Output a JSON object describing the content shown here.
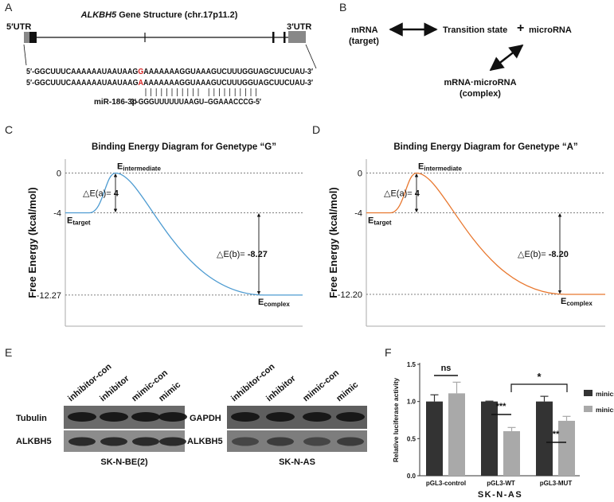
{
  "panels": {
    "A": {
      "letter": "A",
      "title_gene": "ALKBH5",
      "title_rest": " Gene Structure (chr.17p11.2)",
      "utr5": "5′UTR",
      "utr3": "3′UTR",
      "seq1": [
        "5′-GGCUUUCAAAAAAUAAUAAG",
        "G",
        "AAAAAAAGGUAAAGUCUUUGGUAGCUUCUAU-3′"
      ],
      "seq2": [
        "5′-GGCUUUCAAAAAAUAAUAAG",
        "A",
        "AAAAAAAGGUAAAGUCUUUGGUAGCUUCUAU-3′"
      ],
      "mirna_name": "miR-186-3p",
      "mirna_seq": "3′-GGGUUUUUUAAGU–GGAAACCCG-5′"
    },
    "B": {
      "letter": "B",
      "mrna": "mRNA",
      "mrna_note": "(target)",
      "transition": "Transition state",
      "plus": "+",
      "microrna": "microRNA",
      "complex": "mRNA·microRNA",
      "complex_note": "(complex)"
    },
    "C": {
      "letter": "C"
    },
    "D": {
      "letter": "D"
    },
    "E": {
      "letter": "E",
      "lanes": [
        "inhibitor-con",
        "inhibitor",
        "mimic-con",
        "mimic"
      ],
      "left_rows": [
        "Tubulin",
        "ALKBH5"
      ],
      "left_cell": "SK-N-BE(2)",
      "right_rows": [
        "GAPDH",
        "ALKBH5"
      ],
      "right_cell": "SK-N-AS"
    },
    "F": {
      "letter": "F"
    }
  },
  "chart_data": [
    {
      "type": "energy",
      "title": "Binding Energy Diagram for Genetype “G”",
      "y_label": "Free Energy (kcal/mol)",
      "color": "#4d9bd1",
      "ylim": [
        -15.4,
        1.4
      ],
      "yticks": [
        0,
        -4,
        -12.27
      ],
      "levels": [
        -4,
        0,
        -12.27
      ],
      "level_symbol": "E",
      "level_names": [
        "target",
        "intermediate",
        "complex"
      ],
      "delta_labels": [
        "△E(a)= ",
        "△E(b)= "
      ],
      "deltas": [
        4,
        -8.27
      ]
    },
    {
      "type": "energy",
      "title": "Binding Energy Diagram for Genetype “A”",
      "y_label": "Free Energy (kcal/mol)",
      "color": "#e8772e",
      "ylim": [
        -15.4,
        1.4
      ],
      "yticks": [
        0,
        -4,
        {
          "value": -12.2,
          "label": "-12.20"
        }
      ],
      "levels": [
        -4,
        0,
        -12.2
      ],
      "level_symbol": "E",
      "level_names": [
        "target",
        "intermediate",
        "complex"
      ],
      "delta_labels": [
        "△E(a)= ",
        "△E(b)= "
      ],
      "deltas": [
        4,
        -8.2
      ],
      "delta_value_labels": [
        "4",
        "-8.20"
      ]
    },
    {
      "type": "bar",
      "y_label": "Relative luciferase activity",
      "x_label": "SK-N-AS",
      "categories": [
        "pGL3-control",
        "pGL3-WT",
        "pGL3-MUT"
      ],
      "series": [
        {
          "name": "minics-con",
          "color": "#333333",
          "values": [
            1.0,
            1.0,
            1.0
          ],
          "errors": [
            0.09,
            0.005,
            0.07
          ]
        },
        {
          "name": "minics",
          "color": "#a9a9a9",
          "values": [
            1.11,
            0.6,
            0.74
          ],
          "errors": [
            0.15,
            0.05,
            0.06
          ]
        }
      ],
      "ylim": [
        0,
        1.5
      ],
      "yticks": [
        {
          "value": 0,
          "label": "0.0"
        },
        {
          "value": 0.5,
          "label": "0.5"
        },
        {
          "value": 1,
          "label": "1.0"
        },
        {
          "value": 1.5,
          "label": "1.5"
        }
      ],
      "annotations": [
        "ns",
        "***",
        "**",
        "*"
      ],
      "legend": "right"
    }
  ]
}
